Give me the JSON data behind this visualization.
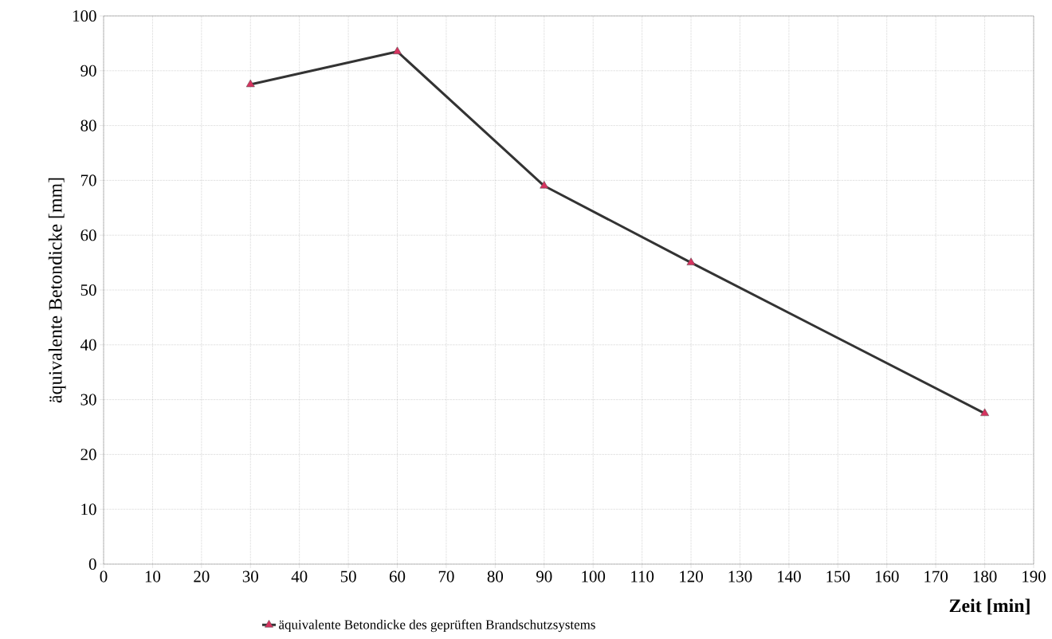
{
  "chart_data": {
    "type": "line",
    "xlabel": "Zeit [min]",
    "ylabel": "äquivalente Betondicke [mm]",
    "x": [
      30,
      60,
      90,
      120,
      180
    ],
    "series": [
      {
        "name": "äquivalente Betondicke des geprüften Brandschutzsystems",
        "color": "#333333",
        "values": [
          87.5,
          93.5,
          69,
          55,
          27.5
        ]
      }
    ],
    "marker": "triangle",
    "xlim": [
      0,
      190
    ],
    "xticks": [
      0,
      10,
      20,
      30,
      40,
      50,
      60,
      70,
      80,
      90,
      100,
      110,
      120,
      130,
      140,
      150,
      160,
      170,
      180,
      190
    ],
    "ylim": [
      0,
      100
    ],
    "yticks": [
      0,
      10,
      20,
      30,
      40,
      50,
      60,
      70,
      80,
      90,
      100
    ],
    "grid": true,
    "legend": "bottom",
    "line_style": "solid"
  }
}
